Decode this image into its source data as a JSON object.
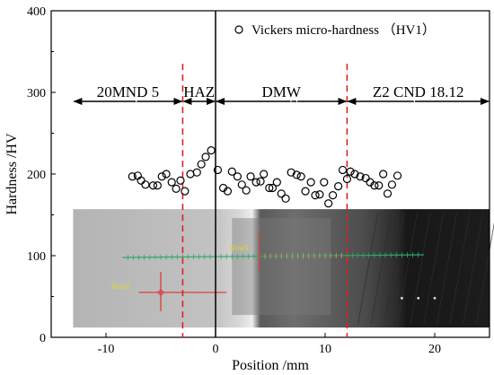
{
  "chart_data": {
    "type": "scatter",
    "xlabel": "Position  /mm",
    "ylabel": "Hardness  /HV",
    "xlim": [
      -15,
      25
    ],
    "ylim": [
      0,
      400
    ],
    "xticks": [
      -10,
      0,
      10,
      20
    ],
    "yticks": [
      0,
      100,
      200,
      300,
      400
    ],
    "legend": {
      "label": "Vickers micro-hardness （HV1）",
      "position": "top-right"
    },
    "series": [
      {
        "name": "Vickers micro-hardness （HV1）",
        "marker": "open-circle",
        "points": [
          {
            "x": -7.6,
            "y": 197
          },
          {
            "x": -7.1,
            "y": 198
          },
          {
            "x": -6.8,
            "y": 192
          },
          {
            "x": -6.4,
            "y": 187
          },
          {
            "x": -5.7,
            "y": 186
          },
          {
            "x": -5.3,
            "y": 186
          },
          {
            "x": -4.9,
            "y": 197
          },
          {
            "x": -4.5,
            "y": 200
          },
          {
            "x": -4.0,
            "y": 190
          },
          {
            "x": -3.6,
            "y": 182
          },
          {
            "x": -3.2,
            "y": 192
          },
          {
            "x": -2.8,
            "y": 179
          },
          {
            "x": -2.3,
            "y": 200
          },
          {
            "x": -1.7,
            "y": 202
          },
          {
            "x": -1.3,
            "y": 212
          },
          {
            "x": -0.9,
            "y": 221
          },
          {
            "x": -0.4,
            "y": 229
          },
          {
            "x": 0.2,
            "y": 205
          },
          {
            "x": 0.7,
            "y": 183
          },
          {
            "x": 1.1,
            "y": 179
          },
          {
            "x": 1.5,
            "y": 203
          },
          {
            "x": 2.0,
            "y": 197
          },
          {
            "x": 2.4,
            "y": 187
          },
          {
            "x": 2.8,
            "y": 180
          },
          {
            "x": 3.2,
            "y": 197
          },
          {
            "x": 3.7,
            "y": 190
          },
          {
            "x": 4.1,
            "y": 191
          },
          {
            "x": 4.4,
            "y": 200
          },
          {
            "x": 4.9,
            "y": 183
          },
          {
            "x": 5.2,
            "y": 183
          },
          {
            "x": 5.6,
            "y": 190
          },
          {
            "x": 6.0,
            "y": 176
          },
          {
            "x": 6.4,
            "y": 170
          },
          {
            "x": 6.9,
            "y": 202
          },
          {
            "x": 7.4,
            "y": 199
          },
          {
            "x": 7.8,
            "y": 197
          },
          {
            "x": 8.2,
            "y": 179
          },
          {
            "x": 8.7,
            "y": 190
          },
          {
            "x": 9.1,
            "y": 174
          },
          {
            "x": 9.5,
            "y": 175
          },
          {
            "x": 9.9,
            "y": 190
          },
          {
            "x": 10.3,
            "y": 164
          },
          {
            "x": 10.7,
            "y": 174
          },
          {
            "x": 11.2,
            "y": 185
          },
          {
            "x": 11.6,
            "y": 205
          },
          {
            "x": 12.0,
            "y": 194
          },
          {
            "x": 12.3,
            "y": 203
          },
          {
            "x": 12.7,
            "y": 200
          },
          {
            "x": 13.2,
            "y": 197
          },
          {
            "x": 13.7,
            "y": 195
          },
          {
            "x": 14.1,
            "y": 190
          },
          {
            "x": 14.5,
            "y": 186
          },
          {
            "x": 14.9,
            "y": 186
          },
          {
            "x": 15.3,
            "y": 200
          },
          {
            "x": 15.7,
            "y": 176
          },
          {
            "x": 16.1,
            "y": 187
          },
          {
            "x": 16.6,
            "y": 198
          }
        ]
      }
    ],
    "zone_boundaries": [
      {
        "x": -3,
        "style": "red dashed"
      },
      {
        "x": 0,
        "style": "black solid"
      },
      {
        "x": 12,
        "style": "red dashed"
      }
    ],
    "zones": [
      {
        "label": "20MND 5",
        "x_from": -13,
        "x_to": -3
      },
      {
        "label": "HAZ",
        "x_from": -3,
        "x_to": 0
      },
      {
        "label": "DMW",
        "x_from": 0,
        "x_to": 12
      },
      {
        "label": "Z2 CND 18.12",
        "x_from": 12,
        "x_to": 25
      }
    ],
    "zone_arrow_y": 289,
    "inset_image": {
      "description_hidden": true,
      "x_range": [
        -13,
        25
      ],
      "y_range": [
        12,
        157
      ],
      "labels": [
        "Row3",
        "Row2"
      ],
      "colors": {
        "row3_line": "#2ea86a",
        "row2_line": "#e03030",
        "row3_label": "#d8d830",
        "row2_label": "#d8d830"
      }
    },
    "grid": false
  }
}
